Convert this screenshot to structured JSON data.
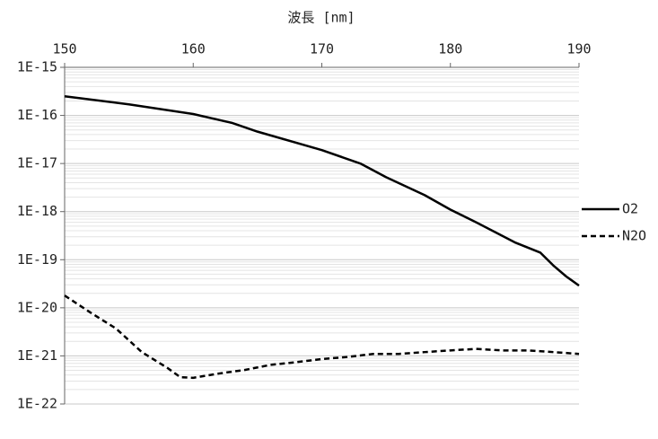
{
  "chart_data": {
    "type": "line",
    "title": "波長 [nm]",
    "xlim": [
      150,
      190
    ],
    "xticks": [
      150,
      160,
      170,
      180,
      190
    ],
    "x_axis_position": "top",
    "ylim": [
      1e-22,
      1e-15
    ],
    "y_scale": "log",
    "yticks": [
      {
        "value": 1e-15,
        "label": "1E-15"
      },
      {
        "value": 1e-16,
        "label": "1E-16"
      },
      {
        "value": 1e-17,
        "label": "1E-17"
      },
      {
        "value": 1e-18,
        "label": "1E-18"
      },
      {
        "value": 1e-19,
        "label": "1E-19"
      },
      {
        "value": 1e-20,
        "label": "1E-20"
      },
      {
        "value": 1e-21,
        "label": "1E-21"
      },
      {
        "value": 1e-22,
        "label": "1E-22"
      }
    ],
    "grid": true,
    "minor_grid": true,
    "legend": "right",
    "series": [
      {
        "name": "O2",
        "color": "#000000",
        "dashed": false,
        "x": [
          150,
          155,
          160,
          163,
          165,
          170,
          173,
          175,
          178,
          180,
          182,
          185,
          187,
          188,
          189,
          190
        ],
        "values": [
          2.5e-16,
          1.7e-16,
          1.07e-16,
          7e-17,
          4.6e-17,
          1.9e-17,
          1e-17,
          5.2e-18,
          2.2e-18,
          1.1e-18,
          6e-19,
          2.3e-19,
          1.4e-19,
          7.6e-20,
          4.5e-20,
          2.9e-20
        ]
      },
      {
        "name": "N2O",
        "color": "#000000",
        "dashed": true,
        "x": [
          150,
          152,
          154,
          156,
          158,
          159,
          160,
          162,
          164,
          166,
          168,
          170,
          172,
          174,
          176,
          178,
          180,
          182,
          184,
          186,
          188,
          190
        ],
        "values": [
          1.8e-20,
          8e-21,
          3.7e-21,
          1.2e-21,
          5.6e-22,
          3.6e-22,
          3.5e-22,
          4.3e-22,
          5.1e-22,
          6.5e-22,
          7.4e-22,
          8.6e-22,
          9.5e-22,
          1.1e-21,
          1.1e-21,
          1.2e-21,
          1.3e-21,
          1.4e-21,
          1.3e-21,
          1.3e-21,
          1.2e-21,
          1.1e-21
        ]
      }
    ]
  }
}
